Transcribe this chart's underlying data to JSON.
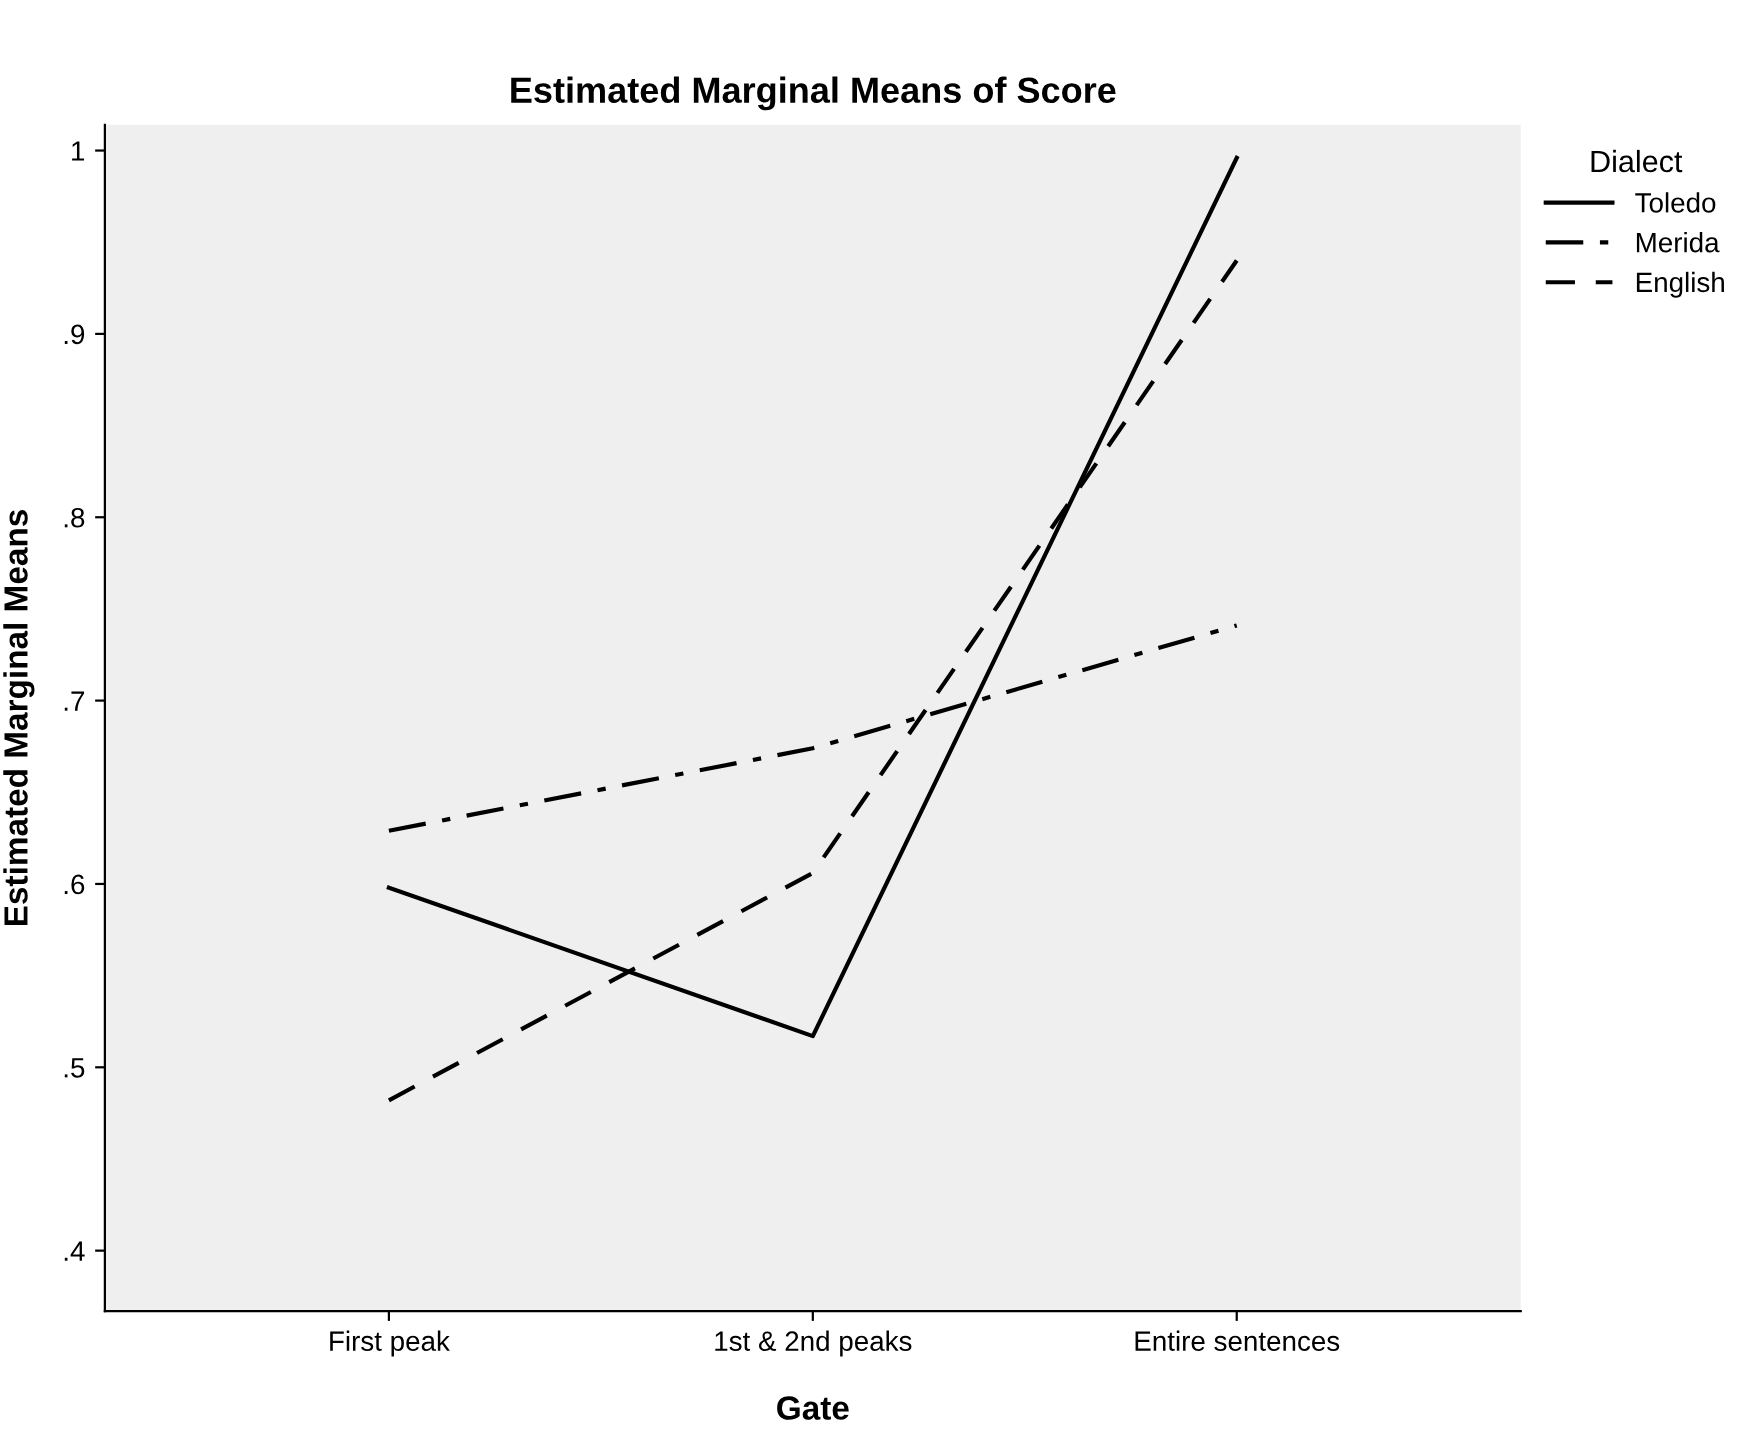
{
  "chart_data": {
    "type": "line",
    "title": "Estimated Marginal Means of Score",
    "xlabel": "Gate",
    "ylabel": "Estimated Marginal Means",
    "legend_title": "Dialect",
    "categories": [
      "First peak",
      "1st & 2nd peaks",
      "Entire sentences"
    ],
    "series": [
      {
        "name": "Toledo",
        "color": "#000000",
        "line_style": "solid",
        "values": [
          0.598,
          0.517,
          0.996
        ]
      },
      {
        "name": "Merida",
        "color": "#000000",
        "line_style": "dashdot",
        "values": [
          0.629,
          0.674,
          0.741
        ]
      },
      {
        "name": "English",
        "color": "#000000",
        "line_style": "dashed",
        "values": [
          0.482,
          0.606,
          0.94
        ]
      }
    ],
    "ylim": [
      0.367,
      1.014
    ],
    "yticks": [
      {
        "value": 0.4,
        "label": ".4"
      },
      {
        "value": 0.5,
        "label": ".5"
      },
      {
        "value": 0.6,
        "label": ".6"
      },
      {
        "value": 0.7,
        "label": ".7"
      },
      {
        "value": 0.8,
        "label": ".8"
      },
      {
        "value": 0.9,
        "label": ".9"
      },
      1
    ],
    "grid": false,
    "legend": "top right"
  }
}
